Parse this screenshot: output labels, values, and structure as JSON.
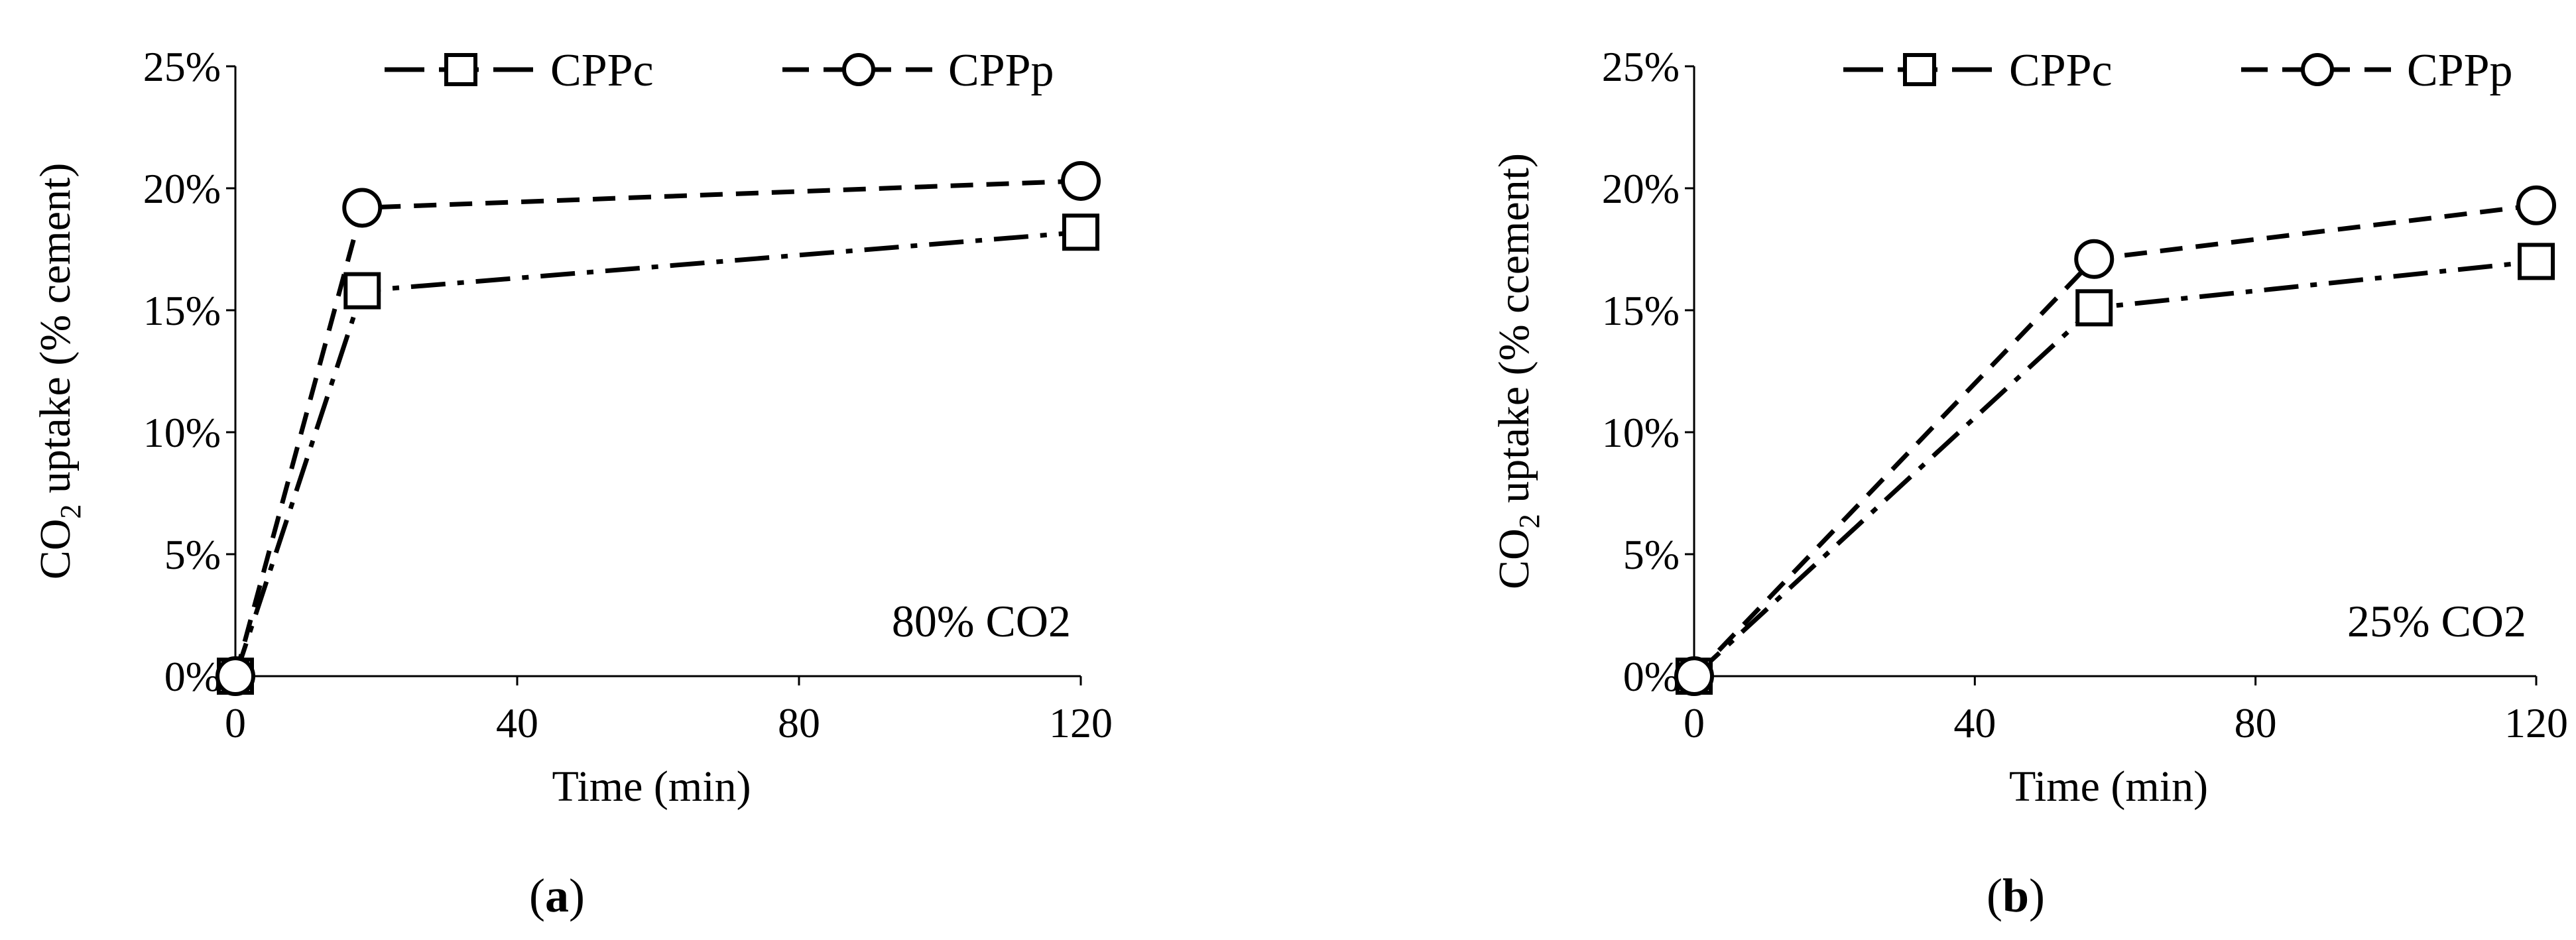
{
  "chart_data": [
    {
      "type": "line",
      "panel_label": "a",
      "xlabel": "Time (min)",
      "ylabel": {
        "prefix": "CO",
        "subscript": "2",
        "suffix": " uptake (% cement)"
      },
      "xlim": [
        0,
        120
      ],
      "ylim": [
        0,
        0.25
      ],
      "xticks": [
        {
          "value": 0,
          "label": "0"
        },
        {
          "value": 40,
          "label": "40"
        },
        {
          "value": 80,
          "label": "80"
        },
        {
          "value": 120,
          "label": "120"
        }
      ],
      "yticks": [
        {
          "value": 0,
          "label": "0%"
        },
        {
          "value": 0.05,
          "label": "5%"
        },
        {
          "value": 0.1,
          "label": "10%"
        },
        {
          "value": 0.15,
          "label": "15%"
        },
        {
          "value": 0.2,
          "label": "20%"
        },
        {
          "value": 0.25,
          "label": "25%"
        }
      ],
      "annotation": "80% CO2",
      "grid": false,
      "legend_position": "top",
      "series": [
        {
          "name": "CPPc",
          "marker": "square",
          "line_style": "dash-dot",
          "color": "#000000",
          "x": [
            0,
            18,
            120
          ],
          "y": [
            0,
            0.158,
            0.182
          ]
        },
        {
          "name": "CPPp",
          "marker": "circle",
          "line_style": "dashed",
          "color": "#000000",
          "x": [
            0,
            18,
            120
          ],
          "y": [
            0,
            0.192,
            0.203
          ]
        }
      ]
    },
    {
      "type": "line",
      "panel_label": "b",
      "xlabel": "Time (min)",
      "ylabel": {
        "prefix": "CO",
        "subscript": "2",
        "suffix": " uptake (% ccement)"
      },
      "xlim": [
        0,
        120
      ],
      "ylim": [
        0,
        0.25
      ],
      "xticks": [
        {
          "value": 0,
          "label": "0"
        },
        {
          "value": 40,
          "label": "40"
        },
        {
          "value": 80,
          "label": "80"
        },
        {
          "value": 120,
          "label": "120"
        }
      ],
      "yticks": [
        {
          "value": 0,
          "label": "0%"
        },
        {
          "value": 0.05,
          "label": "5%"
        },
        {
          "value": 0.1,
          "label": "10%"
        },
        {
          "value": 0.15,
          "label": "15%"
        },
        {
          "value": 0.2,
          "label": "20%"
        },
        {
          "value": 0.25,
          "label": "25%"
        }
      ],
      "annotation": "25% CO2",
      "grid": false,
      "legend_position": "top",
      "series": [
        {
          "name": "CPPc",
          "marker": "square",
          "line_style": "dash-dot",
          "color": "#000000",
          "x": [
            0,
            57,
            120
          ],
          "y": [
            0,
            0.151,
            0.17
          ]
        },
        {
          "name": "CPPp",
          "marker": "circle",
          "line_style": "dashed",
          "color": "#000000",
          "x": [
            0,
            57,
            120
          ],
          "y": [
            0,
            0.171,
            0.193
          ]
        }
      ]
    }
  ]
}
